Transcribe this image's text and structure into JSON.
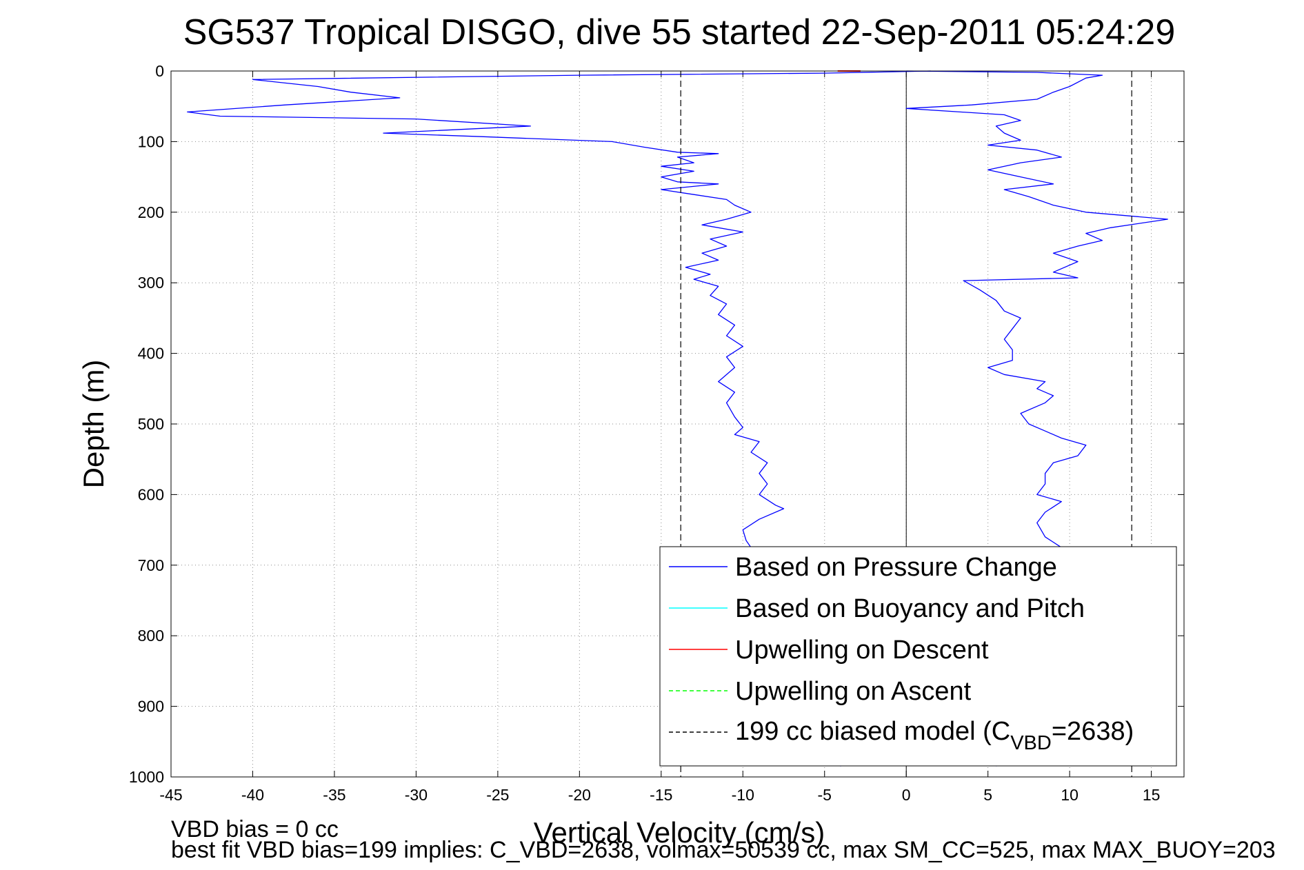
{
  "chart_data": {
    "type": "line",
    "title": "SG537 Tropical DISGO, dive 55 started 22-Sep-2011 05:24:29",
    "xlabel": "Vertical Velocity (cm/s)",
    "ylabel": "Depth (m)",
    "xlim": [
      -45,
      17
    ],
    "ylim": [
      0,
      1000
    ],
    "y_reversed": true,
    "grid": true,
    "x_ticks": [
      -45,
      -40,
      -35,
      -30,
      -25,
      -20,
      -15,
      -10,
      -5,
      0,
      5,
      10,
      15
    ],
    "y_ticks": [
      0,
      100,
      200,
      300,
      400,
      500,
      600,
      700,
      800,
      900,
      1000
    ],
    "legend_position": "bottom-right",
    "legend": [
      {
        "name": "Based on Pressure Change",
        "color": "#0000ff",
        "dash": "solid"
      },
      {
        "name": "Based on Buoyancy and Pitch",
        "color": "#00ffff",
        "dash": "solid"
      },
      {
        "name": "Upwelling on Descent",
        "color": "#ff0000",
        "dash": "solid"
      },
      {
        "name": "Upwelling on Ascent",
        "color": "#00ff00",
        "dash": "dashed"
      },
      {
        "name_main": "199 cc biased model (C",
        "name_sub": "VBD",
        "name_end": "=2638)",
        "color": "#000000",
        "dash": "dashed"
      }
    ],
    "series": [
      {
        "name": "Based on Pressure Change (descent)",
        "color": "#0000ff",
        "points": [
          [
            1.5,
            0
          ],
          [
            -5,
            3
          ],
          [
            -20,
            6
          ],
          [
            -40,
            12
          ],
          [
            -36,
            22
          ],
          [
            -34,
            30
          ],
          [
            -31,
            38
          ],
          [
            -38,
            48
          ],
          [
            -44,
            58
          ],
          [
            -42,
            64
          ],
          [
            -30,
            68
          ],
          [
            -23,
            78
          ],
          [
            -32,
            88
          ],
          [
            -26,
            93
          ],
          [
            -18,
            100
          ],
          [
            -16,
            108
          ],
          [
            -14,
            115
          ],
          [
            -11.5,
            117
          ],
          [
            -14,
            122
          ],
          [
            -13,
            130
          ],
          [
            -15,
            135
          ],
          [
            -13,
            142
          ],
          [
            -15,
            150
          ],
          [
            -14,
            157
          ],
          [
            -11.5,
            160
          ],
          [
            -15,
            168
          ],
          [
            -13,
            175
          ],
          [
            -11,
            182
          ],
          [
            -10.5,
            190
          ],
          [
            -9.5,
            200
          ],
          [
            -11,
            210
          ],
          [
            -12.5,
            218
          ],
          [
            -10,
            228
          ],
          [
            -12,
            238
          ],
          [
            -11,
            248
          ],
          [
            -12.5,
            258
          ],
          [
            -11.5,
            268
          ],
          [
            -13.5,
            278
          ],
          [
            -12,
            288
          ],
          [
            -13,
            295
          ],
          [
            -11.5,
            305
          ],
          [
            -12,
            318
          ],
          [
            -11,
            330
          ],
          [
            -11.5,
            345
          ],
          [
            -10.5,
            360
          ],
          [
            -11,
            375
          ],
          [
            -10,
            390
          ],
          [
            -11,
            405
          ],
          [
            -10.5,
            420
          ],
          [
            -11.5,
            440
          ],
          [
            -10.5,
            455
          ],
          [
            -11,
            470
          ],
          [
            -10.5,
            490
          ],
          [
            -10,
            505
          ],
          [
            -10.5,
            515
          ],
          [
            -9,
            525
          ],
          [
            -9.5,
            540
          ],
          [
            -8.5,
            555
          ],
          [
            -9,
            570
          ],
          [
            -8.5,
            585
          ],
          [
            -9,
            600
          ],
          [
            -8,
            615
          ],
          [
            -7.5,
            620
          ],
          [
            -9,
            635
          ],
          [
            -10,
            650
          ],
          [
            -9.8,
            665
          ],
          [
            -9.5,
            675
          ],
          [
            -4,
            985
          ]
        ]
      },
      {
        "name": "Based on Pressure Change (ascent)",
        "color": "#0000ff",
        "points": [
          [
            5.5,
            985
          ],
          [
            9.5,
            675
          ],
          [
            8.5,
            660
          ],
          [
            8,
            640
          ],
          [
            8.5,
            625
          ],
          [
            9.5,
            610
          ],
          [
            8,
            600
          ],
          [
            8.5,
            585
          ],
          [
            8.5,
            570
          ],
          [
            9,
            555
          ],
          [
            10.5,
            545
          ],
          [
            11,
            530
          ],
          [
            9.5,
            520
          ],
          [
            8.5,
            510
          ],
          [
            7.5,
            500
          ],
          [
            7,
            485
          ],
          [
            8.5,
            470
          ],
          [
            9,
            460
          ],
          [
            8,
            450
          ],
          [
            8.5,
            440
          ],
          [
            6,
            430
          ],
          [
            5,
            420
          ],
          [
            6.5,
            410
          ],
          [
            6.5,
            395
          ],
          [
            6,
            380
          ],
          [
            6.5,
            365
          ],
          [
            7,
            350
          ],
          [
            6,
            340
          ],
          [
            5.5,
            325
          ],
          [
            4.5,
            310
          ],
          [
            3.5,
            297
          ],
          [
            10.5,
            293
          ],
          [
            9,
            285
          ],
          [
            10.5,
            270
          ],
          [
            9,
            258
          ],
          [
            10.5,
            248
          ],
          [
            12,
            240
          ],
          [
            11,
            230
          ],
          [
            12.5,
            222
          ],
          [
            16,
            210
          ],
          [
            11,
            200
          ],
          [
            9,
            190
          ],
          [
            7.5,
            178
          ],
          [
            6,
            168
          ],
          [
            9,
            160
          ],
          [
            7,
            150
          ],
          [
            5,
            140
          ],
          [
            7,
            130
          ],
          [
            9.5,
            122
          ],
          [
            8,
            112
          ],
          [
            5,
            105
          ],
          [
            7,
            98
          ],
          [
            6,
            88
          ],
          [
            5.5,
            78
          ],
          [
            7,
            70
          ],
          [
            6,
            62
          ],
          [
            0,
            53
          ],
          [
            4,
            48
          ],
          [
            8,
            40
          ],
          [
            9,
            30
          ],
          [
            10,
            22
          ],
          [
            11,
            10
          ],
          [
            12,
            6
          ],
          [
            8,
            2
          ],
          [
            0,
            0
          ]
        ]
      },
      {
        "name": "Upwelling on Descent",
        "color": "#ff0000",
        "points": [
          [
            -4.2,
            0
          ],
          [
            -2.8,
            0
          ]
        ]
      },
      {
        "name": "199 cc biased model (descent)",
        "color": "#000000",
        "dash": "dashed",
        "points": [
          [
            -13.8,
            0
          ],
          [
            -13.8,
            1000
          ]
        ]
      },
      {
        "name": "199 cc biased model (ascent)",
        "color": "#000000",
        "dash": "dashed",
        "points": [
          [
            13.8,
            0
          ],
          [
            13.8,
            1000
          ]
        ]
      }
    ],
    "vertical_rule": {
      "x": 0,
      "color": "#000000"
    }
  },
  "footer": {
    "line1": "VBD bias = 0 cc",
    "line2": "best fit VBD bias=199 implies: C_VBD=2638, volmax=50539 cc, max SM_CC=525, max MAX_BUOY=203"
  }
}
